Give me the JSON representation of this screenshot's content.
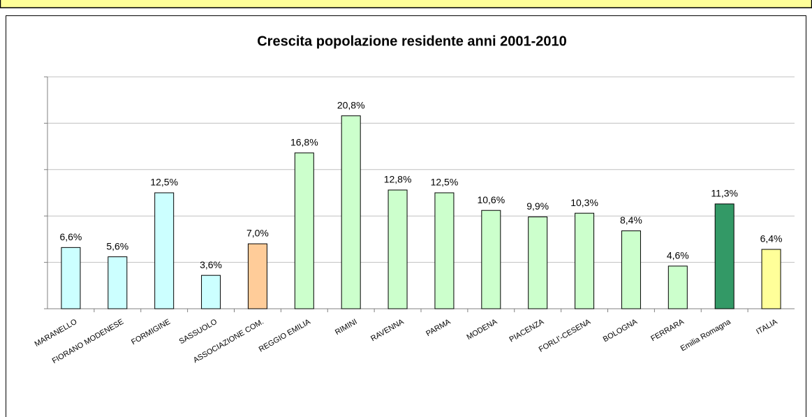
{
  "chart_data": {
    "type": "bar",
    "title": "Crescita popolazione residente anni 2001-2010",
    "categories": [
      "MARANELLO",
      "FIORANO MODENESE",
      "FORMIGINE",
      "SASSUOLO",
      "ASSOCIAZIONE COM.",
      "REGGIO EMILIA",
      "RIMINI",
      "RAVENNA",
      "PARMA",
      "MODENA",
      "PIACENZA",
      "FORLI'-CESENA",
      "BOLOGNA",
      "FERRARA",
      "Emilia Romagna",
      "ITALIA"
    ],
    "values": [
      6.6,
      5.6,
      12.5,
      3.6,
      7.0,
      16.8,
      20.8,
      12.8,
      12.5,
      10.6,
      9.9,
      10.3,
      8.4,
      4.6,
      11.3,
      6.4
    ],
    "value_labels": [
      "6,6%",
      "5,6%",
      "12,5%",
      "3,6%",
      "7,0%",
      "16,8%",
      "20,8%",
      "12,8%",
      "12,5%",
      "10,6%",
      "9,9%",
      "10,3%",
      "8,4%",
      "4,6%",
      "11,3%",
      "6,4%"
    ],
    "colors": [
      "#ccffff",
      "#ccffff",
      "#ccffff",
      "#ccffff",
      "#ffcc99",
      "#ccffcc",
      "#ccffcc",
      "#ccffcc",
      "#ccffcc",
      "#ccffcc",
      "#ccffcc",
      "#ccffcc",
      "#ccffcc",
      "#ccffcc",
      "#339966",
      "#ffff99"
    ],
    "ylim": [
      0,
      25
    ],
    "yticks": [
      0,
      5,
      10,
      15,
      20,
      25
    ],
    "grid": true
  }
}
